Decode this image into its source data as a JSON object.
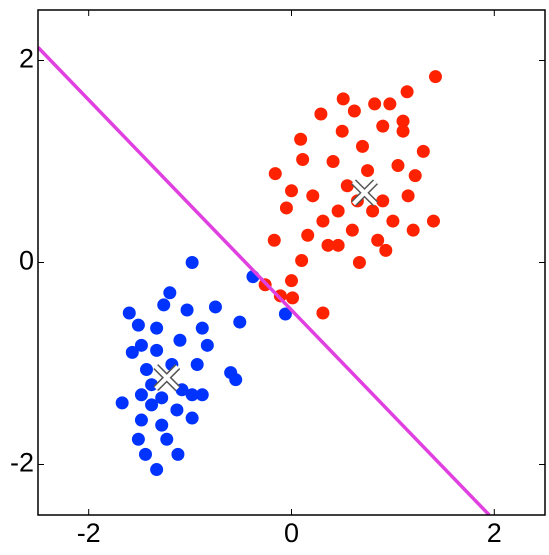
{
  "chart_data": {
    "type": "scatter",
    "xlim": [
      -2.5,
      2.5
    ],
    "ylim": [
      -2.5,
      2.5
    ],
    "xticks": [
      -2,
      0,
      2
    ],
    "yticks": [
      -2,
      0,
      2
    ],
    "series": [
      {
        "color": "#ff2200",
        "marker": "circle",
        "x": [
          1.42,
          1.14,
          0.51,
          0.82,
          0.97,
          0.62,
          0.29,
          0.09,
          0.11,
          -0.16,
          0,
          -0.05,
          -0.17,
          0.1,
          -0.26,
          0.01,
          0.31,
          0.67,
          0.46,
          0.85,
          1.2,
          1.4,
          1.22,
          1.3,
          1.1,
          0.9,
          0.41,
          0.55,
          0.9,
          1.0,
          0.6,
          0.31,
          0.21,
          0.46,
          0.75,
          1.05,
          1.15,
          0.7,
          0.5,
          0.36,
          0.16,
          0.8,
          0.65,
          1.1,
          0.93,
          0,
          -0.11
        ],
        "values": [
          1.84,
          1.69,
          1.62,
          1.57,
          1.57,
          1.5,
          1.47,
          1.22,
          1.02,
          0.88,
          0.71,
          0.54,
          0.22,
          0.02,
          -0.22,
          -0.35,
          -0.5,
          0,
          0.17,
          0.22,
          0.32,
          0.41,
          0.86,
          1.1,
          1.3,
          1.35,
          1.0,
          0.76,
          0.61,
          0.41,
          0.32,
          0.41,
          0.66,
          0.51,
          0.91,
          0.96,
          0.66,
          1.15,
          1.3,
          0.17,
          0.27,
          0.51,
          0.61,
          1.4,
          0.12,
          -0.18,
          -0.33
        ]
      },
      {
        "color": "#0033ff",
        "marker": "circle",
        "x": [
          -0.98,
          -0.38,
          -0.06,
          -1.2,
          -1.26,
          -1.6,
          -0.75,
          -0.51,
          -0.88,
          -1.33,
          -1.51,
          -1.1,
          -1.57,
          -0.83,
          -0.55,
          -0.6,
          -1.43,
          -0.93,
          -1.67,
          -1.48,
          -0.98,
          -1.13,
          -1.48,
          -0.98,
          -1.28,
          -1.51,
          -1.23,
          -1.44,
          -1.12,
          -1.33,
          -1.38,
          -1.18,
          -1.08,
          -1.33,
          -1.48,
          -1.03,
          -0.88,
          -1.38,
          -1.28
        ],
        "values": [
          0,
          -0.14,
          -0.51,
          -0.3,
          -0.42,
          -0.5,
          -0.44,
          -0.59,
          -0.65,
          -0.65,
          -0.62,
          -0.77,
          -0.89,
          -0.82,
          -1.16,
          -1.09,
          -1.06,
          -1.01,
          -1.39,
          -1.31,
          -1.31,
          -1.46,
          -1.56,
          -1.54,
          -1.61,
          -1.75,
          -1.75,
          -1.9,
          -1.9,
          -2.05,
          -1.21,
          -1.01,
          -1.26,
          -0.87,
          -0.82,
          -0.47,
          -1.31,
          -1.41,
          -1.34
        ]
      },
      {
        "color": "#ffffff",
        "marker": "cross",
        "x": [
          0.72,
          -1.23
        ],
        "values": [
          0.69,
          -1.14
        ]
      },
      {
        "color": "#e040e0",
        "marker": "line",
        "x": [
          -2.5,
          1.95
        ],
        "values": [
          2.13,
          -2.5
        ]
      }
    ]
  }
}
